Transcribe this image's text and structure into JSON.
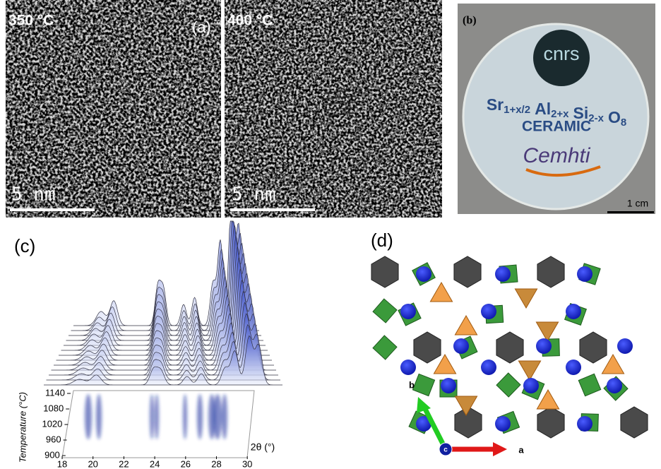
{
  "panel_a": {
    "label": "(a)",
    "left": {
      "temperature": "350 °C",
      "scale": "5 nm"
    },
    "right": {
      "temperature": "400 °C",
      "scale": "5 nm"
    }
  },
  "panel_b": {
    "label": "(b)",
    "logo_top": "cnrs",
    "formula": [
      {
        "base": "Sr",
        "sub": "1+x/2"
      },
      {
        "base": "Al",
        "sub": "2+x"
      },
      {
        "base": "Si",
        "sub": "2-x"
      },
      {
        "base": "O",
        "sub": "8"
      }
    ],
    "material": "CERAMIC",
    "logo_bottom": "Cemhti",
    "scale": "1 cm"
  },
  "panel_c": {
    "label": "(c)",
    "y_axis_title": "Temperature (°C)",
    "y_ticks": [
      "1140",
      "1080",
      "1020",
      "960",
      "900"
    ],
    "x_axis_title": "2θ (°)",
    "x_ticks": [
      "18",
      "20",
      "22",
      "24",
      "26",
      "28",
      "30"
    ]
  },
  "panel_d": {
    "label": "(d)",
    "axis_b": "b",
    "axis_c": "c",
    "axis_a": "a"
  }
}
